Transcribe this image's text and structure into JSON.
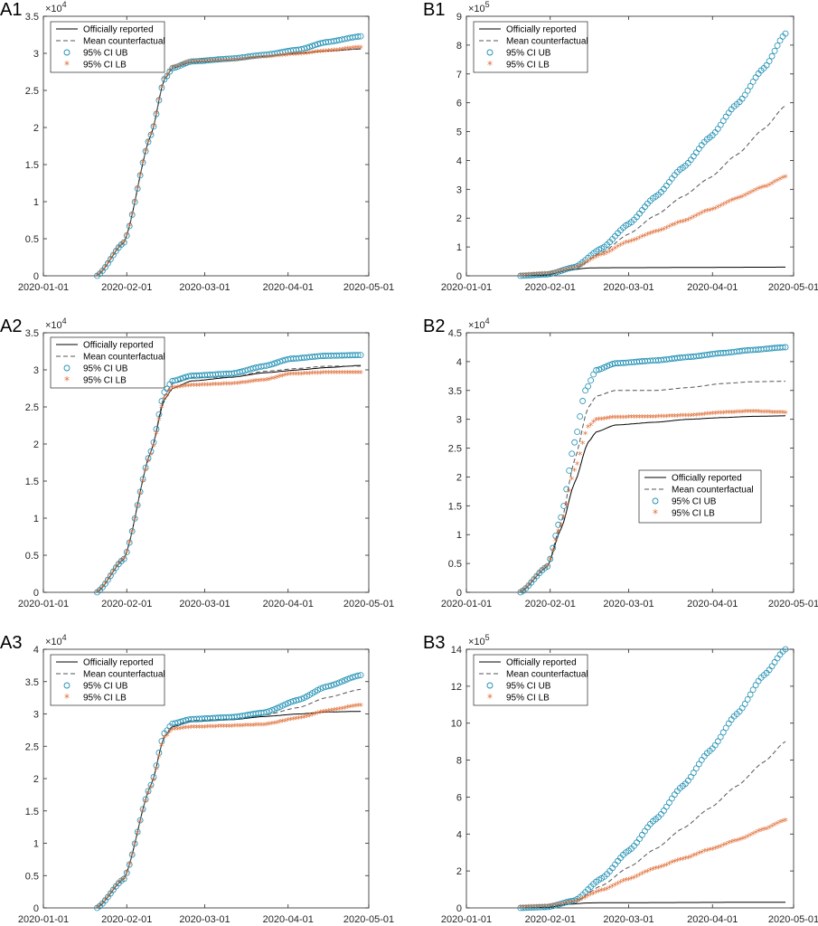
{
  "legend_labels": {
    "official": "Officially reported",
    "mean": "Mean counterfactual",
    "ub": "95% CI UB",
    "lb": "95% CI LB"
  },
  "colors": {
    "official": "#000000",
    "mean": "#555555",
    "ub": "#1f8fb3",
    "lb": "#e0703a",
    "axis": "#262626"
  },
  "chart_data": [
    {
      "id": "A1",
      "type": "line",
      "x_ticks": [
        "2020-01-01",
        "2020-02-01",
        "2020-03-01",
        "2020-04-01",
        "2020-05-01"
      ],
      "x_range": [
        "2020-01-01",
        "2020-05-01"
      ],
      "x_start": "2020-01-21",
      "x_end": "2020-04-28",
      "ylim": [
        0,
        3.5
      ],
      "yticks": [
        0,
        0.5,
        1,
        1.5,
        2,
        2.5,
        3,
        3.5
      ],
      "y_exponent": "4",
      "legend_position": "top-left",
      "series": {
        "official": [
          [
            0,
            0
          ],
          [
            10,
            0.45
          ],
          [
            20,
            1.9
          ],
          [
            25,
            2.65
          ],
          [
            28,
            2.8
          ],
          [
            35,
            2.88
          ],
          [
            50,
            2.91
          ],
          [
            62,
            2.96
          ],
          [
            75,
            3.0
          ],
          [
            85,
            3.03
          ],
          [
            98,
            3.06
          ]
        ],
        "mean": [
          [
            0,
            0
          ],
          [
            10,
            0.45
          ],
          [
            20,
            1.9
          ],
          [
            25,
            2.65
          ],
          [
            28,
            2.8
          ],
          [
            35,
            2.88
          ],
          [
            50,
            2.91
          ],
          [
            62,
            2.96
          ],
          [
            75,
            3.0
          ],
          [
            85,
            3.03
          ],
          [
            98,
            3.06
          ]
        ],
        "ub": [
          [
            0,
            0
          ],
          [
            10,
            0.45
          ],
          [
            20,
            1.9
          ],
          [
            25,
            2.65
          ],
          [
            28,
            2.8
          ],
          [
            35,
            2.89
          ],
          [
            50,
            2.93
          ],
          [
            62,
            2.98
          ],
          [
            75,
            3.05
          ],
          [
            85,
            3.15
          ],
          [
            98,
            3.23
          ]
        ],
        "lb": [
          [
            0,
            0
          ],
          [
            10,
            0.45
          ],
          [
            20,
            1.9
          ],
          [
            25,
            2.65
          ],
          [
            28,
            2.8
          ],
          [
            35,
            2.88
          ],
          [
            50,
            2.9
          ],
          [
            62,
            2.94
          ],
          [
            75,
            2.98
          ],
          [
            85,
            3.02
          ],
          [
            98,
            3.07
          ]
        ]
      }
    },
    {
      "id": "B1",
      "type": "line",
      "x_ticks": [
        "2020-01-01",
        "2020-02-01",
        "2020-03-01",
        "2020-04-01",
        "2020-05-01"
      ],
      "x_range": [
        "2020-01-01",
        "2020-05-01"
      ],
      "x_start": "2020-01-21",
      "x_end": "2020-04-28",
      "ylim": [
        0,
        9
      ],
      "yticks": [
        0,
        1,
        2,
        3,
        4,
        5,
        6,
        7,
        8,
        9
      ],
      "y_exponent": "5",
      "legend_position": "top-left",
      "series": {
        "official": [
          [
            0,
            0
          ],
          [
            10,
            0.03
          ],
          [
            18,
            0.2
          ],
          [
            25,
            0.27
          ],
          [
            30,
            0.28
          ],
          [
            98,
            0.3
          ]
        ],
        "mean": [
          [
            0,
            0
          ],
          [
            10,
            0.05
          ],
          [
            20,
            0.25
          ],
          [
            30,
            0.8
          ],
          [
            40,
            1.45
          ],
          [
            50,
            2.1
          ],
          [
            60,
            2.75
          ],
          [
            70,
            3.4
          ],
          [
            80,
            4.2
          ],
          [
            90,
            5.1
          ],
          [
            98,
            5.9
          ]
        ],
        "ub": [
          [
            0,
            0
          ],
          [
            10,
            0.05
          ],
          [
            20,
            0.3
          ],
          [
            30,
            0.95
          ],
          [
            40,
            1.8
          ],
          [
            50,
            2.75
          ],
          [
            60,
            3.75
          ],
          [
            70,
            4.8
          ],
          [
            80,
            5.95
          ],
          [
            90,
            7.2
          ],
          [
            98,
            8.4
          ]
        ],
        "lb": [
          [
            0,
            0
          ],
          [
            10,
            0.05
          ],
          [
            20,
            0.25
          ],
          [
            30,
            0.7
          ],
          [
            40,
            1.15
          ],
          [
            50,
            1.5
          ],
          [
            60,
            1.85
          ],
          [
            70,
            2.25
          ],
          [
            80,
            2.65
          ],
          [
            90,
            3.05
          ],
          [
            98,
            3.4
          ]
        ]
      }
    },
    {
      "id": "A2",
      "type": "line",
      "x_ticks": [
        "2020-01-01",
        "2020-02-01",
        "2020-03-01",
        "2020-04-01",
        "2020-05-01"
      ],
      "x_range": [
        "2020-01-01",
        "2020-05-01"
      ],
      "x_start": "2020-01-21",
      "x_end": "2020-04-28",
      "ylim": [
        0,
        3.5
      ],
      "yticks": [
        0,
        0.5,
        1,
        1.5,
        2,
        2.5,
        3,
        3.5
      ],
      "y_exponent": "4",
      "legend_position": "top-left",
      "series": {
        "official": [
          [
            0,
            0
          ],
          [
            10,
            0.45
          ],
          [
            20,
            1.9
          ],
          [
            25,
            2.6
          ],
          [
            28,
            2.75
          ],
          [
            35,
            2.85
          ],
          [
            50,
            2.9
          ],
          [
            62,
            2.96
          ],
          [
            75,
            3.0
          ],
          [
            85,
            3.03
          ],
          [
            98,
            3.06
          ]
        ],
        "mean": [
          [
            0,
            0
          ],
          [
            10,
            0.45
          ],
          [
            20,
            1.9
          ],
          [
            25,
            2.65
          ],
          [
            28,
            2.82
          ],
          [
            35,
            2.9
          ],
          [
            50,
            2.9
          ],
          [
            62,
            2.98
          ],
          [
            75,
            3.02
          ],
          [
            85,
            3.05
          ],
          [
            98,
            3.05
          ]
        ],
        "ub": [
          [
            0,
            0
          ],
          [
            10,
            0.45
          ],
          [
            20,
            1.9
          ],
          [
            25,
            2.7
          ],
          [
            28,
            2.85
          ],
          [
            35,
            2.92
          ],
          [
            50,
            2.95
          ],
          [
            62,
            3.05
          ],
          [
            72,
            3.15
          ],
          [
            85,
            3.19
          ],
          [
            98,
            3.2
          ]
        ],
        "lb": [
          [
            0,
            0
          ],
          [
            10,
            0.45
          ],
          [
            20,
            1.85
          ],
          [
            25,
            2.6
          ],
          [
            28,
            2.75
          ],
          [
            35,
            2.78
          ],
          [
            50,
            2.8
          ],
          [
            62,
            2.85
          ],
          [
            72,
            2.93
          ],
          [
            85,
            2.95
          ],
          [
            98,
            2.95
          ]
        ]
      }
    },
    {
      "id": "B2",
      "type": "line",
      "x_ticks": [
        "2020-01-01",
        "2020-02-01",
        "2020-03-01",
        "2020-04-01",
        "2020-05-01"
      ],
      "x_range": [
        "2020-01-01",
        "2020-05-01"
      ],
      "x_start": "2020-01-21",
      "x_end": "2020-04-28",
      "ylim": [
        0,
        4.5
      ],
      "yticks": [
        0,
        0.5,
        1,
        1.5,
        2,
        2.5,
        3,
        3.5,
        4,
        4.5
      ],
      "y_exponent": "4",
      "legend_position": "middle-right",
      "series": {
        "official": [
          [
            0,
            0
          ],
          [
            10,
            0.45
          ],
          [
            15,
            1.1
          ],
          [
            20,
            1.9
          ],
          [
            25,
            2.6
          ],
          [
            28,
            2.78
          ],
          [
            35,
            2.9
          ],
          [
            50,
            2.95
          ],
          [
            62,
            3.0
          ],
          [
            75,
            3.03
          ],
          [
            85,
            3.05
          ],
          [
            98,
            3.06
          ]
        ],
        "mean": [
          [
            0,
            0
          ],
          [
            10,
            0.45
          ],
          [
            15,
            1.2
          ],
          [
            20,
            2.3
          ],
          [
            25,
            3.2
          ],
          [
            28,
            3.4
          ],
          [
            35,
            3.5
          ],
          [
            50,
            3.5
          ],
          [
            62,
            3.55
          ],
          [
            75,
            3.62
          ],
          [
            85,
            3.65
          ],
          [
            98,
            3.66
          ]
        ],
        "ub": [
          [
            0,
            0
          ],
          [
            10,
            0.45
          ],
          [
            15,
            1.3
          ],
          [
            20,
            2.6
          ],
          [
            24,
            3.5
          ],
          [
            28,
            3.85
          ],
          [
            35,
            3.97
          ],
          [
            50,
            4.02
          ],
          [
            62,
            4.08
          ],
          [
            75,
            4.15
          ],
          [
            85,
            4.2
          ],
          [
            98,
            4.25
          ]
        ],
        "lb": [
          [
            0,
            0
          ],
          [
            10,
            0.45
          ],
          [
            15,
            1.15
          ],
          [
            20,
            2.1
          ],
          [
            25,
            2.85
          ],
          [
            28,
            2.98
          ],
          [
            35,
            3.02
          ],
          [
            50,
            3.03
          ],
          [
            62,
            3.05
          ],
          [
            75,
            3.1
          ],
          [
            85,
            3.12
          ],
          [
            98,
            3.1
          ]
        ]
      }
    },
    {
      "id": "A3",
      "type": "line",
      "x_ticks": [
        "2020-01-01",
        "2020-02-01",
        "2020-03-01",
        "2020-04-01",
        "2020-05-01"
      ],
      "x_range": [
        "2020-01-01",
        "2020-05-01"
      ],
      "x_start": "2020-01-21",
      "x_end": "2020-04-28",
      "ylim": [
        0,
        4
      ],
      "yticks": [
        0,
        0.5,
        1,
        1.5,
        2,
        2.5,
        3,
        3.5,
        4
      ],
      "y_exponent": "4",
      "legend_position": "top-left",
      "series": {
        "official": [
          [
            0,
            0
          ],
          [
            10,
            0.45
          ],
          [
            20,
            1.9
          ],
          [
            25,
            2.65
          ],
          [
            28,
            2.8
          ],
          [
            35,
            2.88
          ],
          [
            50,
            2.91
          ],
          [
            62,
            2.96
          ],
          [
            75,
            3.0
          ],
          [
            85,
            3.03
          ],
          [
            98,
            3.04
          ]
        ],
        "mean": [
          [
            0,
            0
          ],
          [
            10,
            0.45
          ],
          [
            20,
            1.9
          ],
          [
            25,
            2.65
          ],
          [
            28,
            2.82
          ],
          [
            35,
            2.9
          ],
          [
            50,
            2.92
          ],
          [
            62,
            2.98
          ],
          [
            75,
            3.1
          ],
          [
            85,
            3.25
          ],
          [
            98,
            3.38
          ]
        ],
        "ub": [
          [
            0,
            0
          ],
          [
            10,
            0.45
          ],
          [
            20,
            1.9
          ],
          [
            25,
            2.7
          ],
          [
            28,
            2.85
          ],
          [
            35,
            2.92
          ],
          [
            50,
            2.95
          ],
          [
            62,
            3.02
          ],
          [
            75,
            3.22
          ],
          [
            85,
            3.42
          ],
          [
            98,
            3.6
          ]
        ],
        "lb": [
          [
            0,
            0
          ],
          [
            10,
            0.45
          ],
          [
            20,
            1.85
          ],
          [
            25,
            2.62
          ],
          [
            28,
            2.75
          ],
          [
            35,
            2.78
          ],
          [
            50,
            2.8
          ],
          [
            62,
            2.82
          ],
          [
            75,
            2.92
          ],
          [
            85,
            3.03
          ],
          [
            98,
            3.12
          ]
        ]
      }
    },
    {
      "id": "B3",
      "type": "line",
      "x_ticks": [
        "2020-01-01",
        "2020-02-01",
        "2020-03-01",
        "2020-04-01",
        "2020-05-01"
      ],
      "x_range": [
        "2020-01-01",
        "2020-05-01"
      ],
      "x_start": "2020-01-21",
      "x_end": "2020-04-28",
      "ylim": [
        0,
        14
      ],
      "yticks": [
        0,
        2,
        4,
        6,
        8,
        10,
        12,
        14
      ],
      "y_exponent": "5",
      "legend_position": "top-left",
      "series": {
        "official": [
          [
            0,
            0
          ],
          [
            10,
            0.03
          ],
          [
            18,
            0.2
          ],
          [
            25,
            0.27
          ],
          [
            30,
            0.28
          ],
          [
            98,
            0.31
          ]
        ],
        "mean": [
          [
            0,
            0
          ],
          [
            10,
            0.05
          ],
          [
            20,
            0.35
          ],
          [
            30,
            1.2
          ],
          [
            40,
            2.2
          ],
          [
            50,
            3.2
          ],
          [
            60,
            4.3
          ],
          [
            70,
            5.4
          ],
          [
            80,
            6.6
          ],
          [
            90,
            7.9
          ],
          [
            98,
            9.0
          ]
        ],
        "ub": [
          [
            0,
            0
          ],
          [
            10,
            0.05
          ],
          [
            20,
            0.4
          ],
          [
            30,
            1.6
          ],
          [
            40,
            3.1
          ],
          [
            50,
            4.8
          ],
          [
            60,
            6.6
          ],
          [
            70,
            8.5
          ],
          [
            80,
            10.5
          ],
          [
            90,
            12.6
          ],
          [
            98,
            14.0
          ]
        ],
        "lb": [
          [
            0,
            0
          ],
          [
            10,
            0.05
          ],
          [
            20,
            0.3
          ],
          [
            30,
            0.9
          ],
          [
            40,
            1.5
          ],
          [
            50,
            2.1
          ],
          [
            60,
            2.6
          ],
          [
            70,
            3.1
          ],
          [
            80,
            3.6
          ],
          [
            90,
            4.2
          ],
          [
            98,
            4.7
          ]
        ]
      }
    }
  ]
}
